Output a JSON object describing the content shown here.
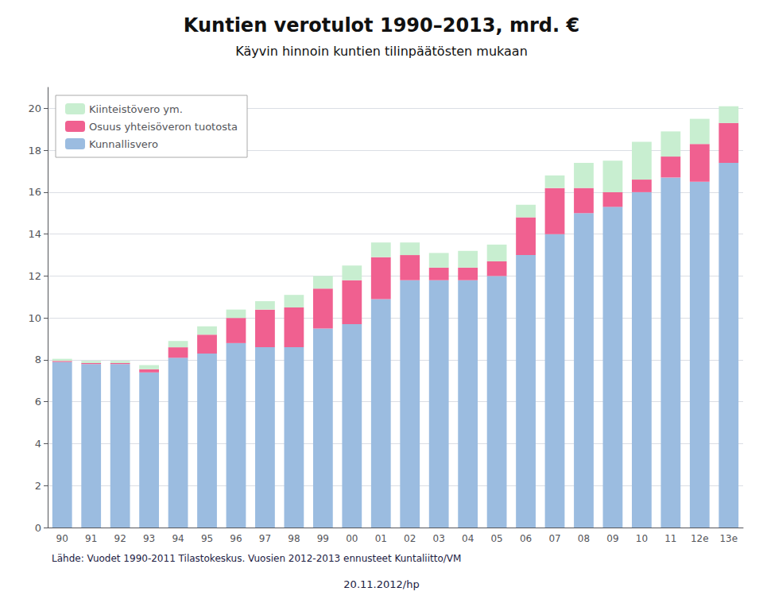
{
  "chart_data": {
    "type": "bar",
    "stacked": true,
    "title": "Kuntien verotulot 1990–2013, mrd. €",
    "subtitle": "Käyvin hinnoin kuntien tilinpäätösten mukaan",
    "annotations": [
      "Lähde: Vuodet 1990-2011 Tilastokeskus. Vuosien 2012-2013 ennusteet Kuntaliitto/VM",
      "20.11.2012/hp"
    ],
    "categories": [
      "90",
      "91",
      "92",
      "93",
      "94",
      "95",
      "96",
      "97",
      "98",
      "99",
      "00",
      "01",
      "02",
      "03",
      "04",
      "05",
      "06",
      "07",
      "08",
      "09",
      "10",
      "11",
      "12e",
      "13e"
    ],
    "series": [
      {
        "name": "Kunnallisvero",
        "color": "#9BBCE0",
        "values": [
          7.9,
          7.8,
          7.8,
          7.4,
          8.1,
          8.3,
          8.8,
          8.6,
          8.6,
          9.5,
          9.7,
          10.9,
          11.8,
          11.8,
          11.8,
          12.0,
          13.0,
          14.0,
          15.0,
          15.3,
          16.0,
          16.7,
          16.5,
          17.4
        ]
      },
      {
        "name": "Osuus yhteisöveron tuotosta",
        "color": "#F06090",
        "values": [
          0.05,
          0.05,
          0.05,
          0.15,
          0.5,
          0.9,
          1.2,
          1.8,
          1.9,
          1.9,
          2.1,
          2.0,
          1.2,
          0.6,
          0.6,
          0.7,
          1.8,
          2.2,
          1.2,
          0.7,
          0.6,
          1.0,
          1.8,
          1.9
        ]
      },
      {
        "name": "Kiinteistövero ym.",
        "color": "#C8EED0",
        "values": [
          0.1,
          0.1,
          0.1,
          0.2,
          0.3,
          0.4,
          0.4,
          0.4,
          0.6,
          0.6,
          0.7,
          0.7,
          0.6,
          0.7,
          0.8,
          0.8,
          0.6,
          0.6,
          1.2,
          1.5,
          1.8,
          1.2,
          1.2,
          0.8
        ]
      }
    ],
    "ylim": [
      0,
      21
    ],
    "yticks": [
      0,
      2,
      4,
      6,
      8,
      10,
      12,
      14,
      16,
      18,
      20
    ],
    "grid": true,
    "legend": "upper left"
  }
}
